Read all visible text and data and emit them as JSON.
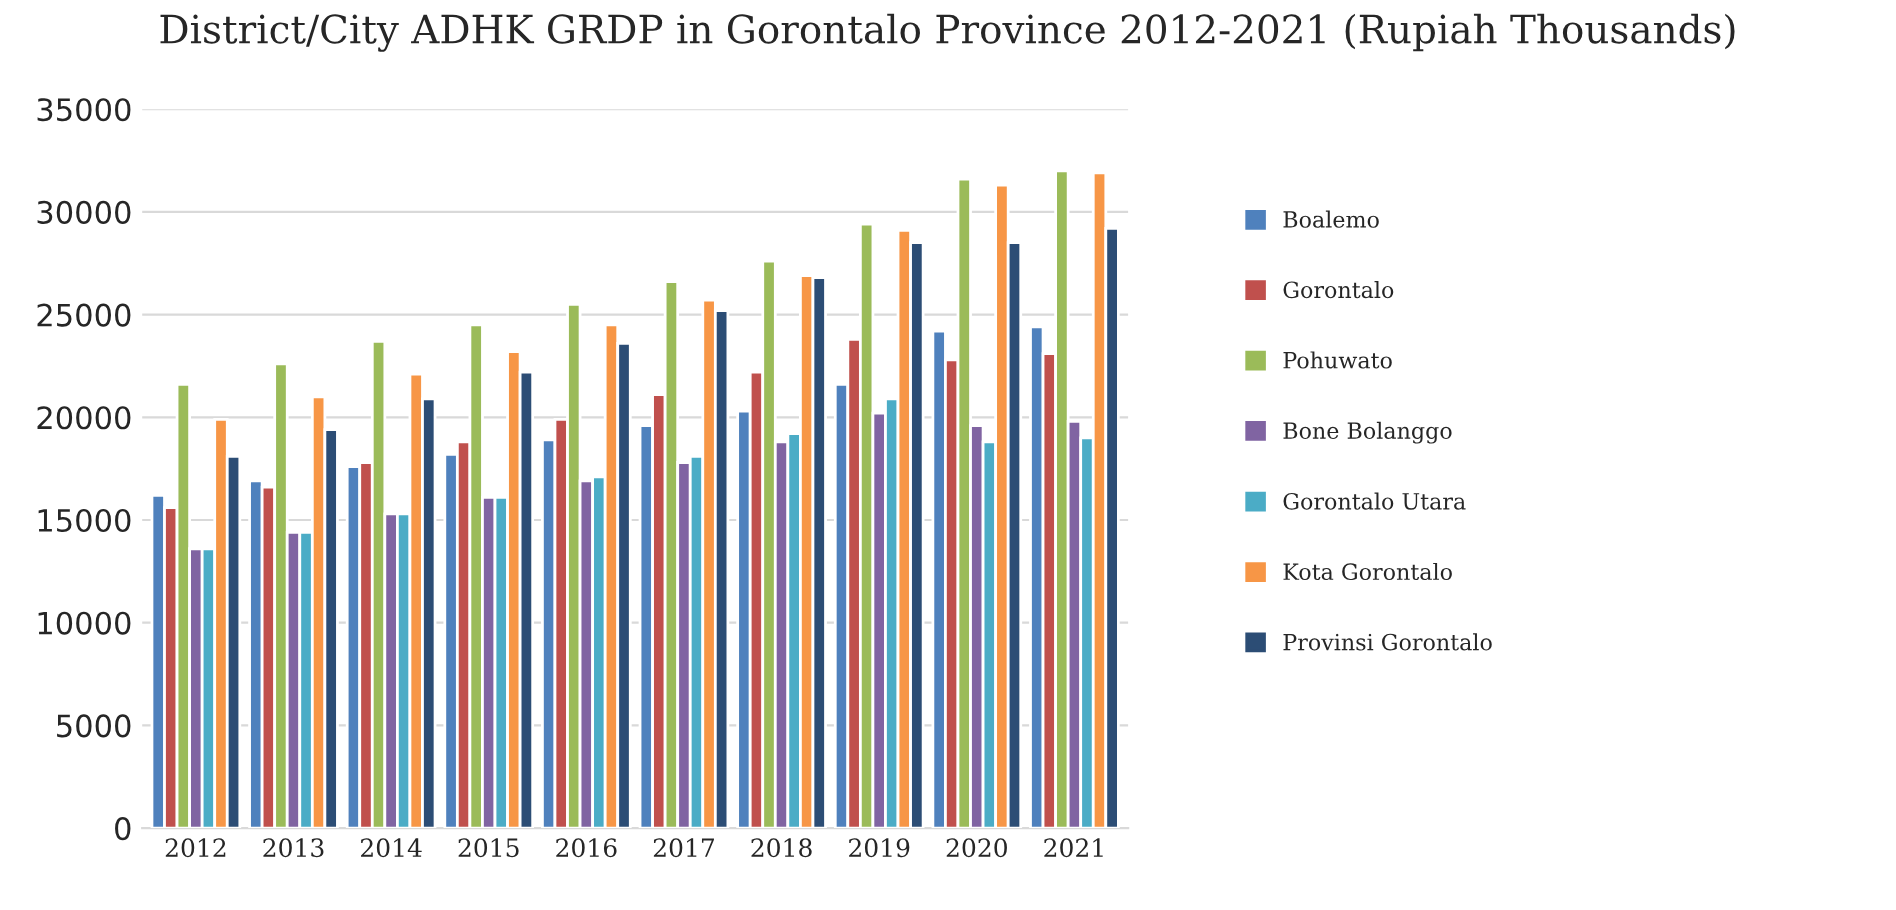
{
  "chart_data": {
    "type": "bar",
    "title": "District/City ADHK GRDP in Gorontalo Province 2012-2021 (Rupiah Thousands)",
    "categories": [
      "2012",
      "2013",
      "2014",
      "2015",
      "2016",
      "2017",
      "2018",
      "2019",
      "2020",
      "2021"
    ],
    "series": [
      {
        "name": "Boalemo",
        "color": "#4f81bd",
        "values": [
          16200,
          16900,
          17600,
          18200,
          18900,
          19600,
          20300,
          21600,
          24200,
          24400
        ]
      },
      {
        "name": "Gorontalo",
        "color": "#c0504d",
        "values": [
          15600,
          16600,
          17800,
          18800,
          19900,
          21100,
          22200,
          23800,
          22800,
          23100
        ]
      },
      {
        "name": "Pohuwato",
        "color": "#9bbb59",
        "values": [
          21600,
          22600,
          23700,
          24500,
          25500,
          26600,
          27600,
          29400,
          31600,
          32000
        ]
      },
      {
        "name": "Bone Bolanggo",
        "color": "#8064a2",
        "values": [
          13600,
          14400,
          15300,
          16100,
          16900,
          17800,
          18800,
          20200,
          19600,
          19800
        ]
      },
      {
        "name": "Gorontalo Utara",
        "color": "#4bacc6",
        "values": [
          13600,
          14400,
          15300,
          16100,
          17100,
          18100,
          19200,
          20900,
          18800,
          19000
        ]
      },
      {
        "name": "Kota Gorontalo",
        "color": "#f79646",
        "values": [
          19900,
          21000,
          22100,
          23200,
          24500,
          25700,
          26900,
          29100,
          31300,
          31900
        ]
      },
      {
        "name": "Provinsi Gorontalo",
        "color": "#2c4d75",
        "values": [
          18100,
          19400,
          20900,
          22200,
          23600,
          25200,
          26800,
          28500,
          28500,
          29200
        ]
      }
    ],
    "ylim": [
      0,
      35000
    ],
    "yticks": [
      0,
      5000,
      10000,
      15000,
      20000,
      25000,
      30000,
      35000
    ],
    "grid": "y",
    "legend": "right"
  }
}
